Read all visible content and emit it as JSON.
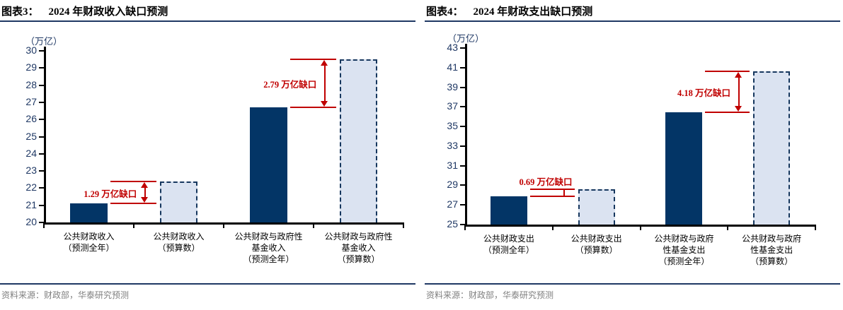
{
  "colors": {
    "bar_solid": "#033566",
    "bar_dashed_fill": "#dbe3f1",
    "bar_dashed_border": "#16375e",
    "annotation_red": "#c00000",
    "rule_navy": "#1f3864",
    "axis_line": "#000000",
    "tick_label": "#1f3864",
    "category_label": "#000000",
    "source_gray": "#808080"
  },
  "charts": [
    {
      "figure_label": "图表3：",
      "title": "2024 年财政收入缺口预测",
      "unit_label": "（万亿）",
      "source_prefix": "资料来源：",
      "source_text": "财政部，华泰研究预测",
      "chart_data": {
        "type": "bar",
        "title": "2024 年财政收入缺口预测",
        "ylabel": "万亿",
        "ylim": [
          20,
          30
        ],
        "ytick_step": 1,
        "grid": false,
        "legend": "none",
        "categories": [
          [
            "公共财政收入",
            "（预测全年）"
          ],
          [
            "公共财政收入",
            "（预算数）"
          ],
          [
            "公共财政与政府性",
            "基金收入",
            "（预测全年）"
          ],
          [
            "公共财政与政府性",
            "基金收入",
            "（预算数）"
          ]
        ],
        "values": [
          21.1,
          22.39,
          26.71,
          29.5
        ],
        "bar_styles": [
          "solid",
          "dashed",
          "solid",
          "dashed"
        ],
        "annotations": [
          {
            "label": "1.29 万亿缺口",
            "between": [
              0,
              1
            ],
            "from_value": 21.1,
            "to_value": 22.39
          },
          {
            "label": "2.79 万亿缺口",
            "between": [
              2,
              3
            ],
            "from_value": 26.71,
            "to_value": 29.5
          }
        ]
      }
    },
    {
      "figure_label": "图表4：",
      "title": "2024 年财政支出缺口预测",
      "unit_label": "（万亿）",
      "source_prefix": "资料来源：",
      "source_text": "财政部，华泰研究预测",
      "chart_data": {
        "type": "bar",
        "title": "2024 年财政支出缺口预测",
        "ylabel": "万亿",
        "ylim": [
          25,
          43
        ],
        "ytick_step": 2,
        "grid": false,
        "legend": "none",
        "categories": [
          [
            "公共财政支出",
            "（预测全年）"
          ],
          [
            "公共财政支出",
            "（预算数）"
          ],
          [
            "公共财政与政府",
            "性基金支出",
            "（预测全年）"
          ],
          [
            "公共财政与政府",
            "性基金支出",
            "（预算数）"
          ]
        ],
        "values": [
          27.9,
          28.59,
          36.42,
          40.6
        ],
        "bar_styles": [
          "solid",
          "dashed",
          "solid",
          "dashed"
        ],
        "annotations": [
          {
            "label": "0.69 万亿缺口",
            "between": [
              0,
              1
            ],
            "from_value": 27.9,
            "to_value": 28.59
          },
          {
            "label": "4.18 万亿缺口",
            "between": [
              2,
              3
            ],
            "from_value": 36.42,
            "to_value": 40.6
          }
        ]
      }
    }
  ]
}
